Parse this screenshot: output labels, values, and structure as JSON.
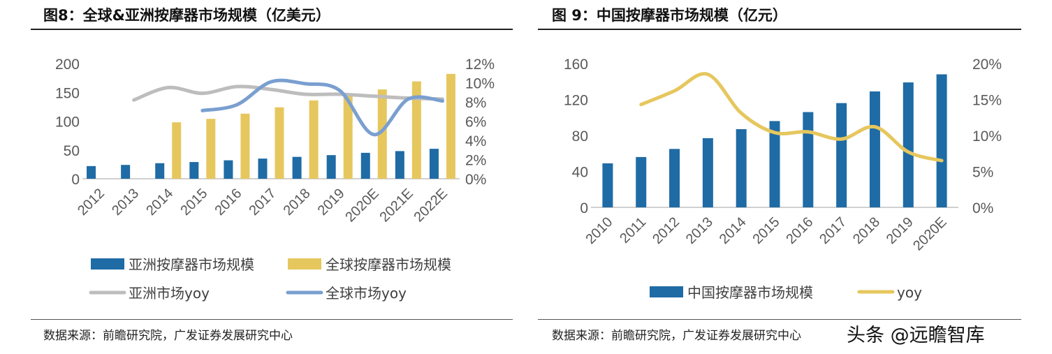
{
  "left": {
    "title": "图8：全球&亚洲按摩器市场规模（亿美元）",
    "source": "数据来源：前瞻研究院，广发证券发展研究中心"
  },
  "right": {
    "title": "图 9：中国按摩器市场规模（亿元）",
    "source": "数据来源：前瞻研究院，广发证券发展研究中心"
  },
  "watermark": "头条 @远瞻智库",
  "chart_data": [
    {
      "type": "bar+line",
      "categories": [
        "2012",
        "2013",
        "2014",
        "2015",
        "2016",
        "2017",
        "2018",
        "2019",
        "2020E",
        "2021E",
        "2022E"
      ],
      "y_left": {
        "ticks": [
          "0",
          "50",
          "100",
          "150",
          "200"
        ],
        "range": [
          0,
          200
        ]
      },
      "y_right": {
        "ticks": [
          "0%",
          "2%",
          "4%",
          "6%",
          "8%",
          "10%",
          "12%"
        ],
        "range": [
          0,
          12
        ]
      },
      "series": [
        {
          "name": "亚洲按摩器市场规模",
          "kind": "bar",
          "axis": "left",
          "color": "#1F6BA5",
          "values": [
            22,
            24,
            27,
            29,
            32,
            35,
            38,
            41,
            45,
            48,
            52
          ]
        },
        {
          "name": "全球按摩器市场规模",
          "kind": "bar",
          "axis": "left",
          "color": "#E6C75E",
          "values": [
            null,
            null,
            98,
            104,
            113,
            124,
            136,
            147,
            155,
            169,
            182
          ]
        },
        {
          "name": "亚洲市场yoy",
          "kind": "line",
          "axis": "right",
          "color": "#BDBDBD",
          "values": [
            null,
            8.2,
            9.5,
            8.9,
            9.6,
            9.3,
            8.8,
            8.8,
            8.6,
            8.4,
            8.3
          ]
        },
        {
          "name": "全球市场yoy",
          "kind": "line",
          "axis": "right",
          "color": "#7A9FD0",
          "values": [
            null,
            null,
            null,
            7.1,
            7.7,
            10.1,
            9.9,
            9.2,
            4.6,
            8.3,
            8.1
          ]
        }
      ],
      "legend": "bottom"
    },
    {
      "type": "bar+line",
      "categories": [
        "2010",
        "2011",
        "2012",
        "2013",
        "2014",
        "2015",
        "2016",
        "2017",
        "2018",
        "2019",
        "2020E"
      ],
      "y_left": {
        "ticks": [
          "0",
          "40",
          "80",
          "120",
          "160"
        ],
        "range": [
          0,
          160
        ]
      },
      "y_right": {
        "ticks": [
          "0%",
          "5%",
          "10%",
          "15%",
          "20%"
        ],
        "range": [
          0,
          20
        ]
      },
      "series": [
        {
          "name": "中国按摩器市场规模",
          "kind": "bar",
          "axis": "left",
          "color": "#1F6BA5",
          "values": [
            49,
            56,
            65,
            77,
            87,
            96,
            106,
            116,
            129,
            139,
            148
          ]
        },
        {
          "name": "yoy",
          "kind": "line",
          "axis": "right",
          "color": "#E6C75E",
          "values": [
            null,
            14.3,
            16.2,
            18.5,
            13.1,
            10.4,
            10.5,
            9.5,
            11.2,
            7.7,
            6.5
          ]
        }
      ],
      "legend": "bottom"
    }
  ]
}
